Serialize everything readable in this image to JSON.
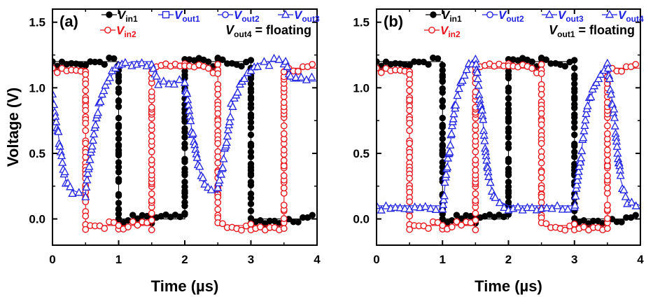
{
  "chart_data": [
    {
      "type": "line",
      "panel_tag": "(a)",
      "xlabel": "Time (µs)",
      "ylabel": "Voltage (V)",
      "xlim": [
        0,
        4
      ],
      "ylim": [
        -0.2,
        1.6
      ],
      "x_ticks": [
        "0",
        "1",
        "2",
        "3",
        "4"
      ],
      "y_ticks": [
        "0.0",
        "0.5",
        "1.0",
        "1.5"
      ],
      "note": {
        "var": "V",
        "sub": "out4",
        "rest": " = floating"
      },
      "legend": [
        {
          "key": "vin1",
          "var": "V",
          "sub": "in1"
        },
        {
          "key": "vout1",
          "var": "V",
          "sub": "out1"
        },
        {
          "key": "vout2",
          "var": "V",
          "sub": "out2"
        },
        {
          "key": "vout3",
          "var": "V",
          "sub": "out3"
        },
        {
          "key": "vin2",
          "var": "V",
          "sub": "in2"
        }
      ],
      "series": [
        {
          "key": "vin1",
          "marker": "filled-circle",
          "color": "#000000",
          "x": [
            0,
            0.5,
            0.5,
            1.0,
            1.0,
            1.5,
            1.5,
            2.0,
            2.0,
            2.5,
            2.5,
            3.0,
            3.0,
            3.5,
            3.5,
            4.0
          ],
          "y": [
            1.2,
            1.2,
            1.2,
            1.2,
            0.0,
            0.0,
            0.0,
            0.0,
            1.2,
            1.2,
            1.2,
            1.2,
            0.0,
            0.0,
            0.0,
            0.0
          ]
        },
        {
          "key": "vin2",
          "marker": "open-circle",
          "color": "#e8151b",
          "x": [
            0,
            0.5,
            0.5,
            1.0,
            1.0,
            1.5,
            1.5,
            2.0,
            2.0,
            2.5,
            2.5,
            3.0,
            3.0,
            3.5,
            3.5,
            4.0
          ],
          "y": [
            1.15,
            1.15,
            -0.05,
            -0.05,
            -0.05,
            -0.05,
            1.15,
            1.15,
            1.15,
            1.15,
            -0.05,
            -0.05,
            -0.05,
            -0.05,
            1.15,
            1.15
          ]
        },
        {
          "key": "vout3",
          "marker": "open-triangle",
          "color": "#1f22e0",
          "x": [
            0,
            0.1,
            0.2,
            0.3,
            0.4,
            0.5,
            0.6,
            0.7,
            0.8,
            0.9,
            1.0,
            1.1,
            1.2,
            1.5,
            1.6,
            2.0,
            2.1,
            2.2,
            2.3,
            2.4,
            2.5,
            2.6,
            2.7,
            2.8,
            2.9,
            3.0,
            3.1,
            3.2,
            3.5,
            3.6,
            4.0
          ],
          "y": [
            0.95,
            0.6,
            0.3,
            0.22,
            0.2,
            0.2,
            0.55,
            0.85,
            1.0,
            1.1,
            1.15,
            1.18,
            1.2,
            1.2,
            1.05,
            1.05,
            0.7,
            0.4,
            0.25,
            0.22,
            0.2,
            0.5,
            0.85,
            1.0,
            1.1,
            1.15,
            1.18,
            1.2,
            1.2,
            1.05,
            1.05
          ]
        }
      ]
    },
    {
      "type": "line",
      "panel_tag": "(b)",
      "xlabel": "Time (µs)",
      "ylabel": "",
      "xlim": [
        0,
        4
      ],
      "ylim": [
        -0.2,
        1.6
      ],
      "x_ticks": [
        "0",
        "1",
        "2",
        "3",
        "4"
      ],
      "y_ticks": [
        "0.0",
        "0.5",
        "1.0",
        "1.5"
      ],
      "note": {
        "var": "V",
        "sub": "out1",
        "rest": " = floating"
      },
      "legend": [
        {
          "key": "vin1",
          "var": "V",
          "sub": "in1"
        },
        {
          "key": "vout2",
          "var": "V",
          "sub": "out2"
        },
        {
          "key": "vout3",
          "var": "V",
          "sub": "out3"
        },
        {
          "key": "vout4",
          "var": "V",
          "sub": "out4"
        },
        {
          "key": "vin2",
          "var": "V",
          "sub": "in2"
        }
      ],
      "series": [
        {
          "key": "vin1",
          "marker": "filled-circle",
          "color": "#000000",
          "x": [
            0,
            0.5,
            0.5,
            1.0,
            1.0,
            1.5,
            1.5,
            2.0,
            2.0,
            2.5,
            2.5,
            3.0,
            3.0,
            3.5,
            3.5,
            4.0
          ],
          "y": [
            1.2,
            1.2,
            1.2,
            1.2,
            0.0,
            0.0,
            0.0,
            0.0,
            1.2,
            1.2,
            1.2,
            1.2,
            0.0,
            0.0,
            0.0,
            0.0
          ]
        },
        {
          "key": "vin2",
          "marker": "open-circle",
          "color": "#e8151b",
          "x": [
            0,
            0.5,
            0.5,
            1.0,
            1.0,
            1.5,
            1.5,
            2.0,
            2.0,
            2.5,
            2.5,
            3.0,
            3.0,
            3.5,
            3.5,
            4.0
          ],
          "y": [
            1.15,
            1.15,
            -0.05,
            -0.05,
            -0.05,
            -0.05,
            1.15,
            1.15,
            1.15,
            1.15,
            -0.05,
            -0.05,
            -0.05,
            -0.05,
            1.15,
            1.15
          ]
        },
        {
          "key": "vout4",
          "marker": "open-triangle",
          "color": "#1f22e0",
          "x": [
            0,
            0.5,
            0.9,
            1.0,
            1.1,
            1.2,
            1.3,
            1.4,
            1.5,
            1.6,
            1.7,
            1.8,
            2.0,
            2.5,
            2.9,
            3.0,
            3.1,
            3.2,
            3.3,
            3.4,
            3.5,
            3.6,
            3.7,
            3.8,
            4.0
          ],
          "y": [
            0.1,
            0.1,
            0.1,
            0.1,
            0.5,
            0.9,
            1.05,
            1.15,
            1.2,
            0.8,
            0.3,
            0.15,
            0.1,
            0.1,
            0.1,
            0.1,
            0.5,
            0.85,
            1.0,
            1.1,
            1.15,
            0.8,
            0.3,
            0.15,
            0.1
          ]
        }
      ]
    }
  ]
}
